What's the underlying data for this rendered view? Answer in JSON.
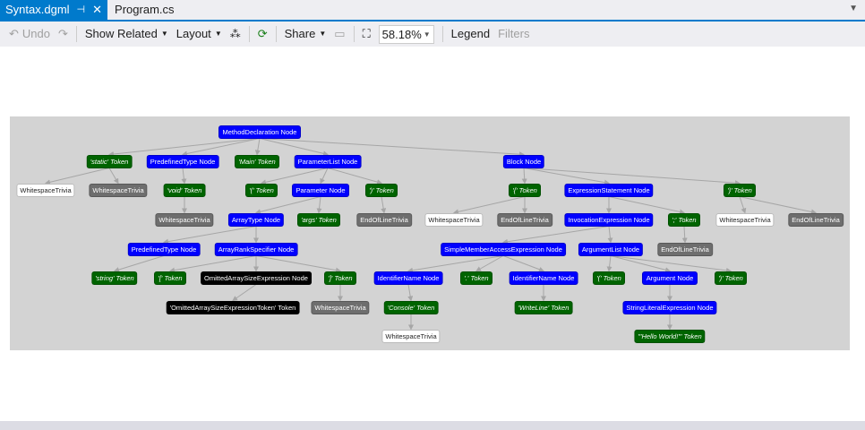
{
  "tabs": [
    {
      "label": "Syntax.dgml",
      "active": true
    },
    {
      "label": "Program.cs",
      "active": false
    }
  ],
  "toolbar": {
    "undo": "Undo",
    "show_related": "Show Related",
    "layout": "Layout",
    "share": "Share",
    "zoom": "58.18%",
    "legend": "Legend",
    "filters": "Filters"
  },
  "colors": {
    "accent": "#007acc",
    "syntax_node": "#0000ff",
    "token": "#006400",
    "trivia": "#6e6e6e",
    "missing": "#000000"
  },
  "graph": {
    "nodes": [
      {
        "label": "MethodDeclaration Node",
        "kind": "node",
        "parent": null
      },
      {
        "label": "'static' Token",
        "kind": "token",
        "parent": 0
      },
      {
        "label": "PredefinedType Node",
        "kind": "node",
        "parent": 0
      },
      {
        "label": "'Main' Token",
        "kind": "token",
        "parent": 0
      },
      {
        "label": "ParameterList Node",
        "kind": "node",
        "parent": 0
      },
      {
        "label": "Block Node",
        "kind": "node",
        "parent": 0
      },
      {
        "label": "WhitespaceTrivia",
        "kind": "trivia-white",
        "parent": 1
      },
      {
        "label": "WhitespaceTrivia",
        "kind": "trivia-gray",
        "parent": 1
      },
      {
        "label": "'void' Token",
        "kind": "token",
        "parent": 2
      },
      {
        "label": "'(' Token",
        "kind": "token",
        "parent": 4
      },
      {
        "label": "Parameter Node",
        "kind": "node",
        "parent": 4
      },
      {
        "label": "')' Token",
        "kind": "token",
        "parent": 4
      },
      {
        "label": "'{' Token",
        "kind": "token",
        "parent": 5
      },
      {
        "label": "ExpressionStatement Node",
        "kind": "node",
        "parent": 5
      },
      {
        "label": "'}' Token",
        "kind": "token",
        "parent": 5
      },
      {
        "label": "WhitespaceTrivia",
        "kind": "trivia-gray",
        "parent": 8
      },
      {
        "label": "ArrayType Node",
        "kind": "node",
        "parent": 10
      },
      {
        "label": "'args' Token",
        "kind": "token",
        "parent": 10
      },
      {
        "label": "EndOfLineTrivia",
        "kind": "trivia-gray",
        "parent": 11
      },
      {
        "label": "WhitespaceTrivia",
        "kind": "trivia-white",
        "parent": 12
      },
      {
        "label": "EndOfLineTrivia",
        "kind": "trivia-gray",
        "parent": 12
      },
      {
        "label": "InvocationExpression Node",
        "kind": "node",
        "parent": 13
      },
      {
        "label": "';' Token",
        "kind": "token",
        "parent": 13
      },
      {
        "label": "WhitespaceTrivia",
        "kind": "trivia-white",
        "parent": 14
      },
      {
        "label": "EndOfLineTrivia",
        "kind": "trivia-gray",
        "parent": 14
      },
      {
        "label": "PredefinedType Node",
        "kind": "node",
        "parent": 16
      },
      {
        "label": "ArrayRankSpecifier Node",
        "kind": "node",
        "parent": 16
      },
      {
        "label": "SimpleMemberAccessExpression Node",
        "kind": "node",
        "parent": 21
      },
      {
        "label": "ArgumentList Node",
        "kind": "node",
        "parent": 21
      },
      {
        "label": "EndOfLineTrivia",
        "kind": "trivia-gray",
        "parent": 22
      },
      {
        "label": "'string' Token",
        "kind": "token",
        "parent": 25
      },
      {
        "label": "'[' Token",
        "kind": "token",
        "parent": 26
      },
      {
        "label": "OmittedArraySizeExpression Node",
        "kind": "black",
        "parent": 26
      },
      {
        "label": "']' Token",
        "kind": "token",
        "parent": 26
      },
      {
        "label": "IdentifierName Node",
        "kind": "node",
        "parent": 27
      },
      {
        "label": "'.' Token",
        "kind": "token",
        "parent": 27
      },
      {
        "label": "IdentifierName Node",
        "kind": "node",
        "parent": 27
      },
      {
        "label": "'(' Token",
        "kind": "token",
        "parent": 28
      },
      {
        "label": "Argument Node",
        "kind": "node",
        "parent": 28
      },
      {
        "label": "')' Token",
        "kind": "token",
        "parent": 28
      },
      {
        "label": "'OmittedArraySizeExpressionToken' Token",
        "kind": "black",
        "parent": 32
      },
      {
        "label": "WhitespaceTrivia",
        "kind": "trivia-gray",
        "parent": 33
      },
      {
        "label": "'Console' Token",
        "kind": "token",
        "parent": 34
      },
      {
        "label": "'WriteLine' Token",
        "kind": "token",
        "parent": 36
      },
      {
        "label": "StringLiteralExpression Node",
        "kind": "node",
        "parent": 38
      },
      {
        "label": "WhitespaceTrivia",
        "kind": "trivia-white",
        "parent": 42
      },
      {
        "label": "'\"Hello World!\"' Token",
        "kind": "token",
        "parent": 44
      }
    ]
  }
}
